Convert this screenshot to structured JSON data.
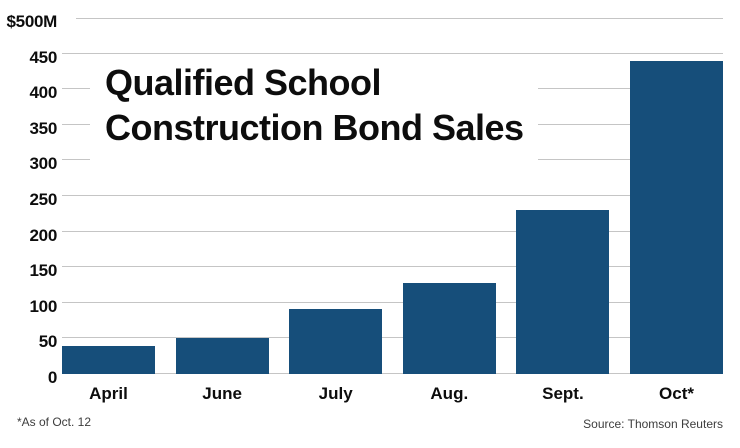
{
  "chart": {
    "title_line1": "Qualified School",
    "title_line2": "Construction Bond Sales"
  },
  "colors": {
    "bar": "#164e7a",
    "grid": "#c5c5c5",
    "text": "#0d0d0d",
    "note": "#3d3d3d",
    "background": "#ffffff"
  },
  "chart_data": {
    "type": "bar",
    "title": "Qualified School Construction Bond Sales",
    "unit": "millions of US dollars",
    "categories": [
      "April",
      "June",
      "July",
      "Aug.",
      "Sept.",
      "Oct*"
    ],
    "values": [
      40,
      50,
      92,
      128,
      231,
      439
    ],
    "ylim": [
      0,
      500
    ],
    "grid": true,
    "legend": false,
    "yticks": [
      {
        "label": "$500M",
        "value": 500
      },
      {
        "label": "450",
        "value": 450
      },
      {
        "label": "400",
        "value": 400
      },
      {
        "label": "350",
        "value": 350
      },
      {
        "label": "300",
        "value": 300
      },
      {
        "label": "250",
        "value": 250
      },
      {
        "label": "200",
        "value": 200
      },
      {
        "label": "150",
        "value": 150
      },
      {
        "label": "100",
        "value": 100
      },
      {
        "label": "50",
        "value": 50
      },
      {
        "label": "0",
        "value": 0
      }
    ],
    "footnote": "*As of Oct. 12",
    "source": "Source: Thomson Reuters"
  }
}
